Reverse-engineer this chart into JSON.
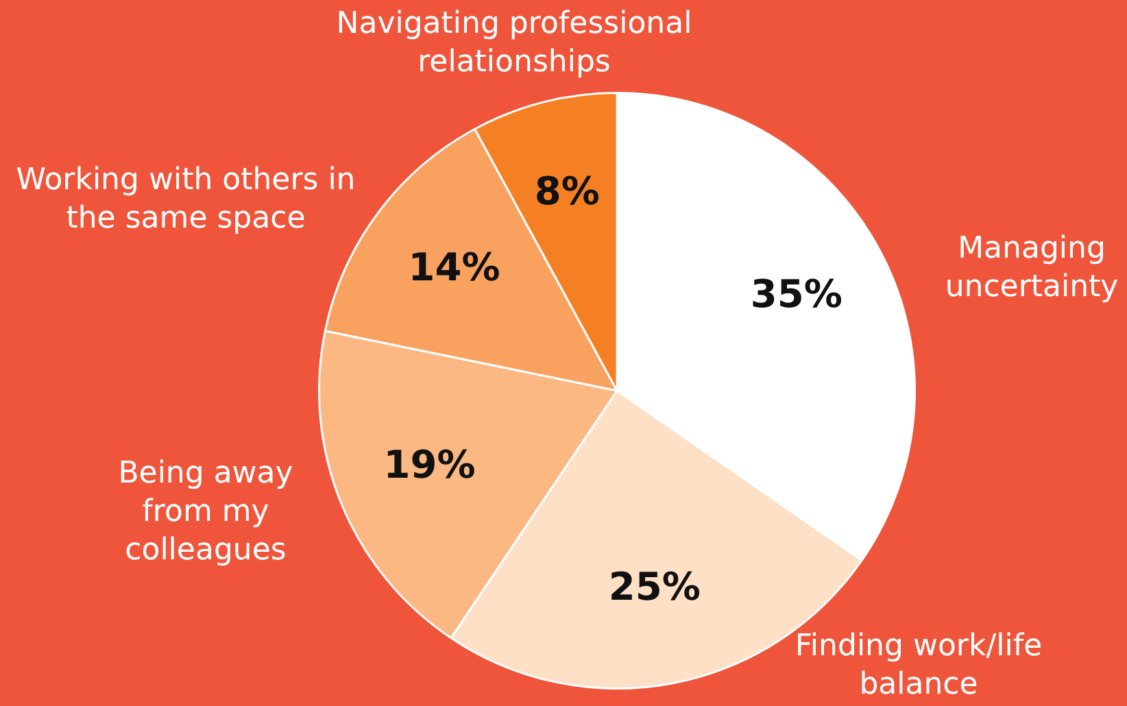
{
  "chart_data": {
    "type": "pie",
    "categories": [
      "Managing uncertainty",
      "Finding work/life balance",
      "Being away from my colleagues",
      "Working with others in the same space",
      "Navigating professional relationships"
    ],
    "values": [
      35,
      25,
      19,
      14,
      8
    ],
    "colors": [
      "#ffffff",
      "#fde0c6",
      "#fbb883",
      "#f9a15f",
      "#f58024"
    ],
    "value_labels": [
      "35%",
      "25%",
      "19%",
      "14%",
      "8%"
    ],
    "legend": false
  }
}
